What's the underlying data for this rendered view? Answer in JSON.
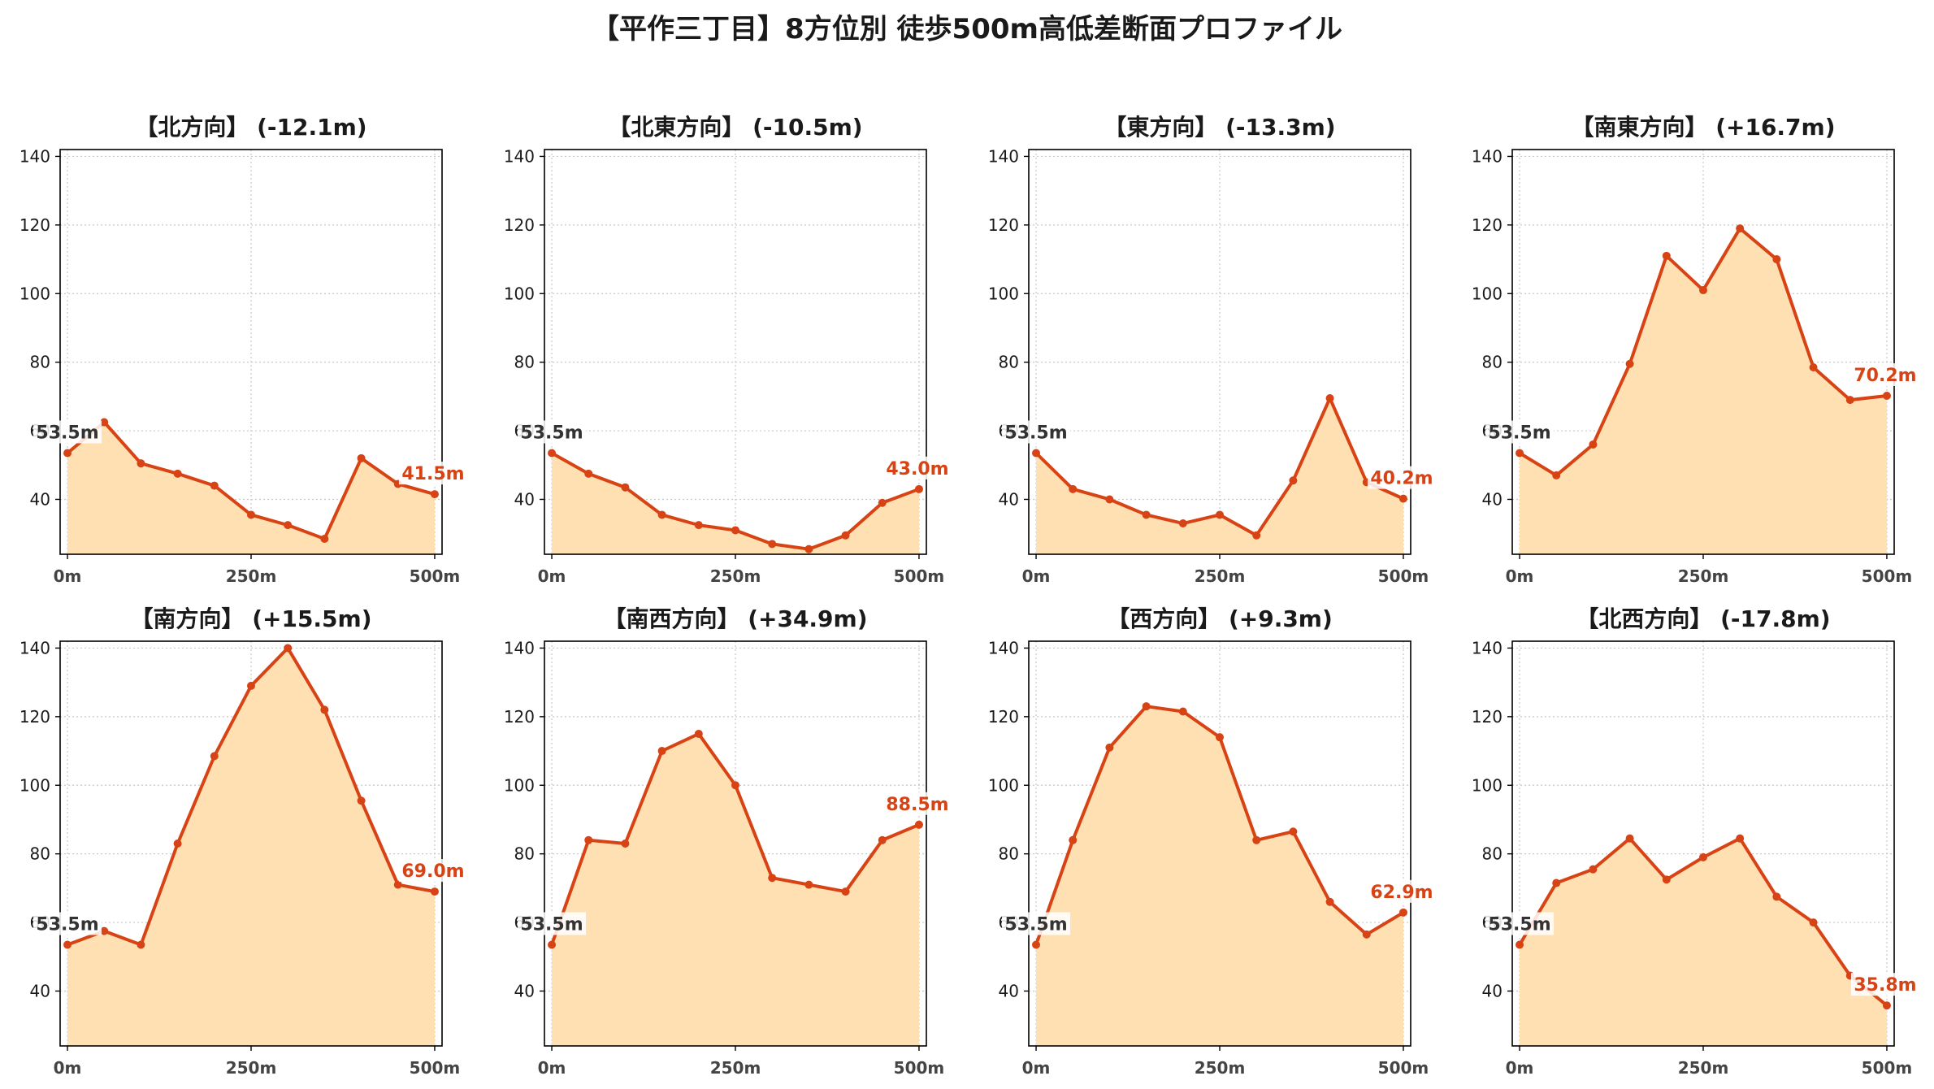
{
  "title": "【平作三丁目】8方位別 徒歩500m高低差断面プロファイル",
  "colors": {
    "line": "#d84315",
    "fill": "#ffe0b2",
    "grid": "#c8c8c8",
    "start_label": "#333333",
    "end_label": "#d84315"
  },
  "chart_data": [
    {
      "type": "area",
      "title": "【北方向】 (-12.1m)",
      "x": [
        0,
        50,
        100,
        150,
        200,
        250,
        300,
        350,
        400,
        450,
        500
      ],
      "values": [
        53.5,
        62.5,
        50.5,
        47.5,
        44.0,
        35.5,
        32.5,
        28.5,
        52.0,
        44.5,
        41.5
      ],
      "start_label": "53.5m",
      "end_label": "41.5m"
    },
    {
      "type": "area",
      "title": "【北東方向】 (-10.5m)",
      "x": [
        0,
        50,
        100,
        150,
        200,
        250,
        300,
        350,
        400,
        450,
        500
      ],
      "values": [
        53.5,
        47.5,
        43.5,
        35.5,
        32.5,
        31.0,
        27.0,
        25.5,
        29.5,
        39.0,
        43.0
      ],
      "start_label": "53.5m",
      "end_label": "43.0m"
    },
    {
      "type": "area",
      "title": "【東方向】 (-13.3m)",
      "x": [
        0,
        50,
        100,
        150,
        200,
        250,
        300,
        350,
        400,
        450,
        500
      ],
      "values": [
        53.5,
        43.0,
        40.0,
        35.5,
        33.0,
        35.5,
        29.5,
        45.5,
        69.5,
        45.0,
        40.2
      ],
      "start_label": "53.5m",
      "end_label": "40.2m"
    },
    {
      "type": "area",
      "title": "【南東方向】 (+16.7m)",
      "x": [
        0,
        50,
        100,
        150,
        200,
        250,
        300,
        350,
        400,
        450,
        500
      ],
      "values": [
        53.5,
        47.0,
        56.0,
        79.5,
        111.0,
        101.0,
        119.0,
        110.0,
        78.5,
        69.0,
        70.2
      ],
      "start_label": "53.5m",
      "end_label": "70.2m"
    },
    {
      "type": "area",
      "title": "【南方向】 (+15.5m)",
      "x": [
        0,
        50,
        100,
        150,
        200,
        250,
        300,
        350,
        400,
        450,
        500
      ],
      "values": [
        53.5,
        57.5,
        53.5,
        83.0,
        108.5,
        129.0,
        140.0,
        122.0,
        95.5,
        71.0,
        69.0
      ],
      "start_label": "53.5m",
      "end_label": "69.0m"
    },
    {
      "type": "area",
      "title": "【南西方向】 (+34.9m)",
      "x": [
        0,
        50,
        100,
        150,
        200,
        250,
        300,
        350,
        400,
        450,
        500
      ],
      "values": [
        53.5,
        84.0,
        83.0,
        110.0,
        115.0,
        100.0,
        73.0,
        71.0,
        69.0,
        84.0,
        88.5
      ],
      "start_label": "53.5m",
      "end_label": "88.5m"
    },
    {
      "type": "area",
      "title": "【西方向】 (+9.3m)",
      "x": [
        0,
        50,
        100,
        150,
        200,
        250,
        300,
        350,
        400,
        450,
        500
      ],
      "values": [
        53.5,
        84.0,
        111.0,
        123.0,
        121.5,
        114.0,
        84.0,
        86.5,
        66.0,
        56.5,
        62.9
      ],
      "start_label": "53.5m",
      "end_label": "62.9m"
    },
    {
      "type": "area",
      "title": "【北西方向】 (-17.8m)",
      "x": [
        0,
        50,
        100,
        150,
        200,
        250,
        300,
        350,
        400,
        450,
        500
      ],
      "values": [
        53.5,
        71.5,
        75.5,
        84.5,
        72.5,
        79.0,
        84.5,
        67.5,
        60.0,
        44.5,
        35.8
      ],
      "start_label": "53.5m",
      "end_label": "35.8m"
    }
  ],
  "axes": {
    "ylim": [
      24,
      142
    ],
    "xlim": [
      -10,
      510
    ],
    "y_ticks": [
      40,
      60,
      80,
      100,
      120,
      140
    ],
    "x_ticks": [
      0,
      250,
      500
    ],
    "x_tick_labels": [
      "0m",
      "250m",
      "500m"
    ],
    "grid": true,
    "grid_style": "dotted"
  }
}
